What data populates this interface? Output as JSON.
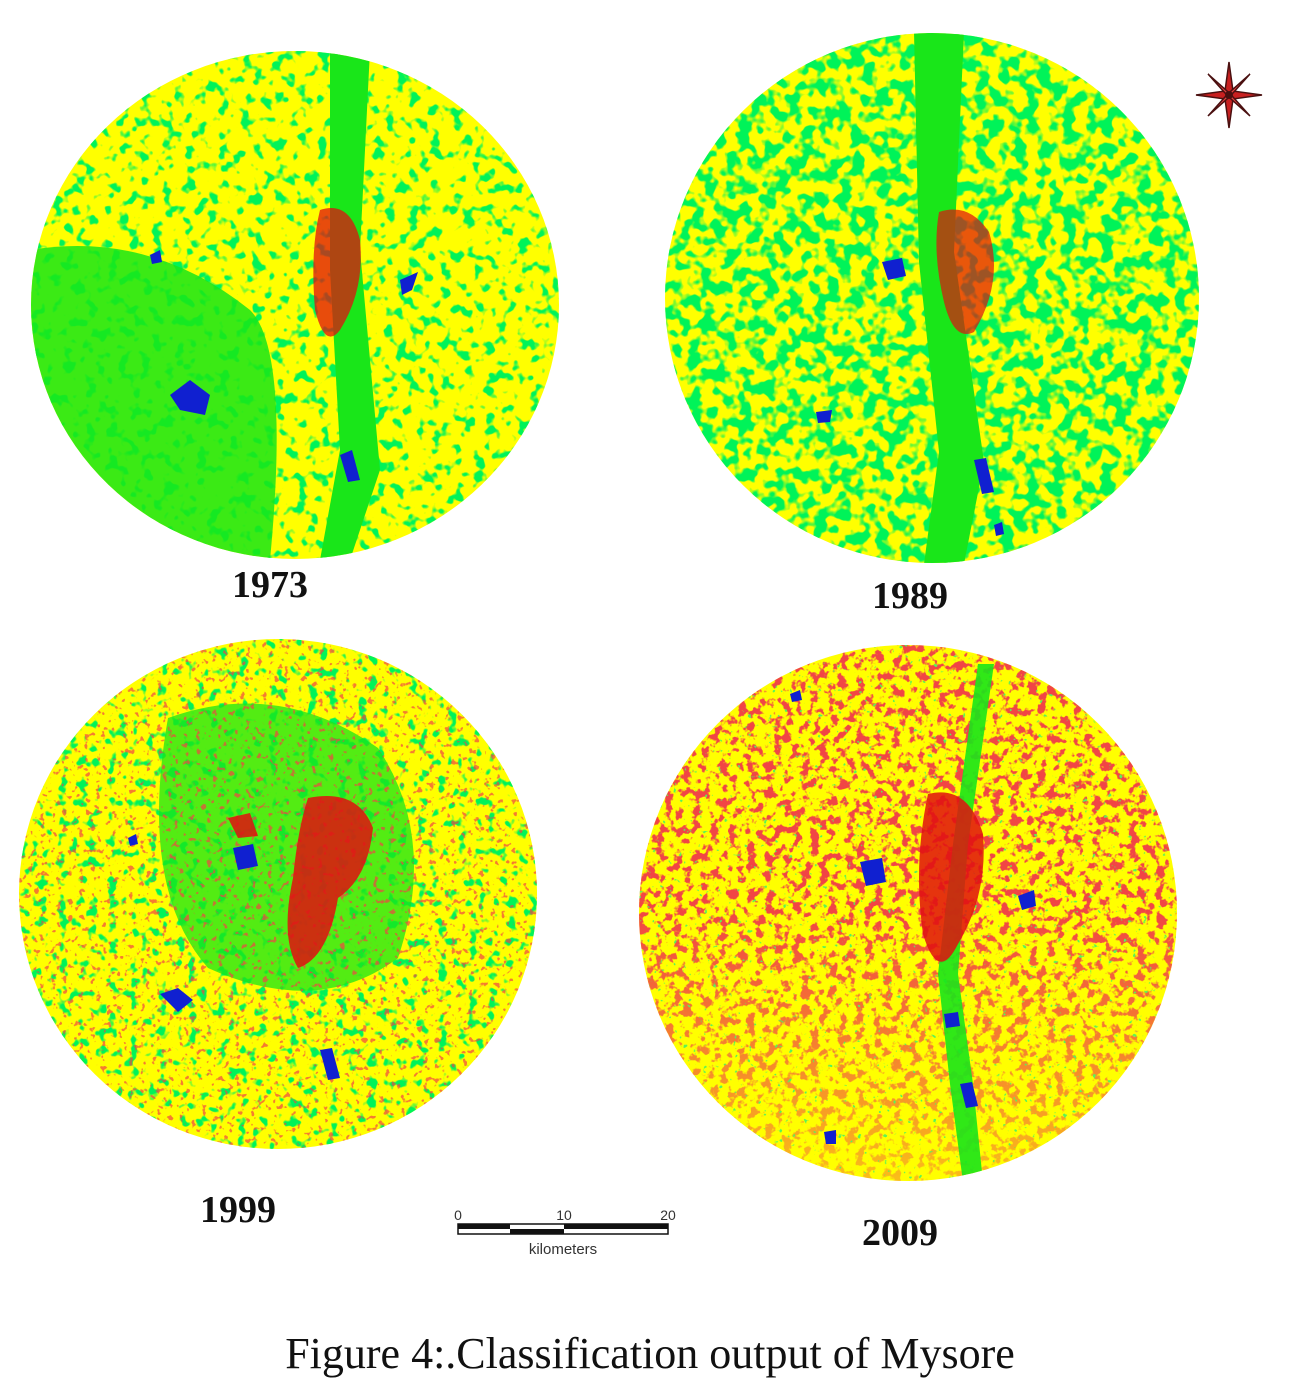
{
  "figure": {
    "caption": "Figure 4:.Classification output of Mysore"
  },
  "legend_colors": {
    "vegetation": "#19e619",
    "agriculture_open": "#ffff00",
    "built_up": "#e01010",
    "water": "#1020d0"
  },
  "maps": [
    {
      "id": "map-1973",
      "year": "1973",
      "built_up_share": 0.03,
      "vegetation_share": 0.55,
      "water_share": 0.02
    },
    {
      "id": "map-1989",
      "year": "1989",
      "built_up_share": 0.05,
      "vegetation_share": 0.62,
      "water_share": 0.015
    },
    {
      "id": "map-1999",
      "year": "1999",
      "built_up_share": 0.1,
      "vegetation_share": 0.45,
      "water_share": 0.02
    },
    {
      "id": "map-2009",
      "year": "2009",
      "built_up_share": 0.38,
      "vegetation_share": 0.1,
      "water_share": 0.02
    }
  ],
  "scale_bar": {
    "ticks": [
      "0",
      "10",
      "20"
    ],
    "unit_label": "kilometers"
  },
  "north_arrow": {
    "icon": "north-arrow-icon"
  }
}
